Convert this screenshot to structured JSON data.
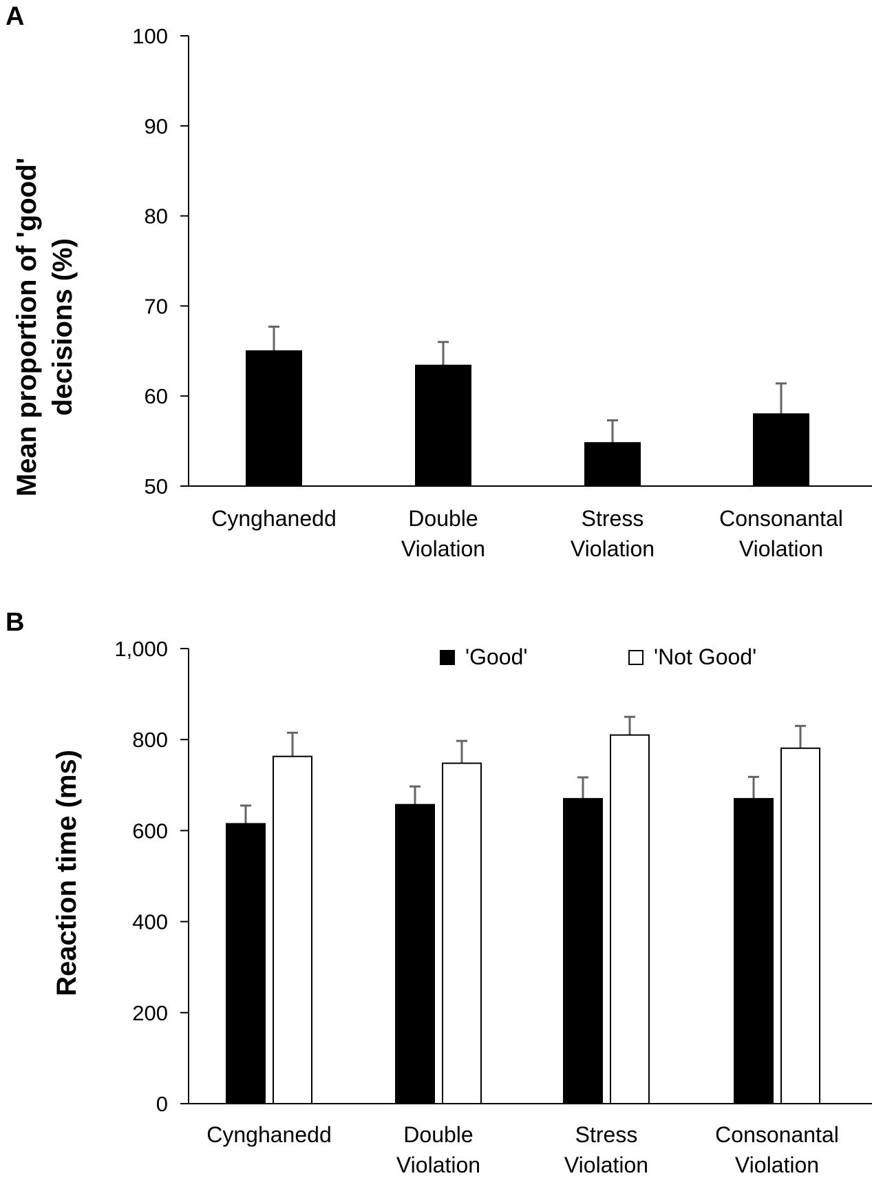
{
  "chart_data": [
    {
      "panel": "A",
      "type": "bar",
      "title": "",
      "xlabel": "",
      "ylabel": "Mean proportion of 'good' decisions (%)",
      "ylabel_lines": [
        "Mean proportion of 'good'",
        "decisions (%)"
      ],
      "ylim": [
        50,
        100
      ],
      "yticks": [
        50,
        60,
        70,
        80,
        90,
        100
      ],
      "ytick_labels": [
        "50",
        "60",
        "70",
        "80",
        "90",
        "100"
      ],
      "categories": [
        [
          "Cynghanedd"
        ],
        [
          "Double",
          "Violation"
        ],
        [
          "Stress",
          "Violation"
        ],
        [
          "Consonantal",
          "Violation"
        ]
      ],
      "series": [
        {
          "name": "",
          "values": [
            65.0,
            63.4,
            54.8,
            58.0
          ],
          "errors": [
            2.7,
            2.6,
            2.5,
            3.4
          ],
          "color": "#000000"
        }
      ],
      "grid": false
    },
    {
      "panel": "B",
      "type": "bar",
      "title": "",
      "xlabel": "",
      "ylabel": "Reaction time (ms)",
      "ylabel_lines": [
        "Reaction time (ms)"
      ],
      "ylim": [
        0,
        1000
      ],
      "yticks": [
        0,
        200,
        400,
        600,
        800,
        1000
      ],
      "ytick_labels": [
        "0",
        "200",
        "400",
        "600",
        "800",
        "1,000"
      ],
      "categories": [
        [
          "Cynghanedd"
        ],
        [
          "Double",
          "Violation"
        ],
        [
          "Stress",
          "Violation"
        ],
        [
          "Consonantal",
          "Violation"
        ]
      ],
      "series": [
        {
          "name": "'Good'",
          "values": [
            615,
            657,
            670,
            670
          ],
          "errors": [
            40,
            40,
            47,
            48
          ],
          "color": "#000000"
        },
        {
          "name": "'Not Good'",
          "values": [
            763,
            748,
            810,
            781
          ],
          "errors": [
            52,
            49,
            40,
            49
          ],
          "color": "#ffffff"
        }
      ],
      "legend": "top",
      "grid": false
    }
  ]
}
